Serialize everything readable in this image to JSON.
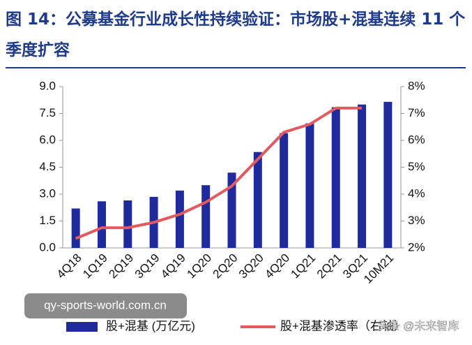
{
  "chart_data": {
    "type": "bar-line",
    "title": "图 14：公募基金行业成长性持续验证：市场股+混基连续 11 个季度扩容",
    "categories": [
      "4Q18",
      "1Q19",
      "2Q19",
      "3Q19",
      "4Q19",
      "1Q20",
      "2Q20",
      "3Q20",
      "4Q20",
      "1Q21",
      "2Q21",
      "3Q21",
      "10M21"
    ],
    "series": [
      {
        "name": "股+混基 (万亿元)",
        "color": "#1f2a9c",
        "type": "bar",
        "values": [
          2.2,
          2.6,
          2.65,
          2.85,
          3.2,
          3.5,
          4.2,
          5.35,
          6.4,
          6.95,
          7.85,
          8.0,
          8.15
        ]
      },
      {
        "name": "股+混基渗透率（右轴）",
        "color": "#e05a5f",
        "type": "line",
        "axis": "y2",
        "values": [
          2.35,
          2.75,
          2.75,
          2.95,
          3.25,
          3.7,
          4.3,
          5.3,
          6.3,
          6.6,
          7.2,
          7.2,
          null
        ]
      }
    ],
    "ylim": [
      0,
      9
    ],
    "yticks": [
      {
        "value": 0,
        "label": "0.0"
      },
      1.5,
      {
        "value": 3,
        "label": "3.0"
      },
      4.5,
      {
        "value": 6,
        "label": "6.0"
      },
      7.5,
      {
        "value": 9,
        "label": "9.0"
      }
    ],
    "y2lim": [
      2,
      8
    ],
    "y2ticks": [
      {
        "value": 2,
        "label": "2%"
      },
      {
        "value": 3,
        "label": "3%"
      },
      {
        "value": 4,
        "label": "4%"
      },
      {
        "value": 5,
        "label": "5%"
      },
      {
        "value": 6,
        "label": "6%"
      },
      {
        "value": 7,
        "label": "7%"
      },
      {
        "value": 8,
        "label": "8%"
      }
    ],
    "watermarks": [
      "qy-sports-world.com.cn",
      "头条 @未来智库"
    ]
  }
}
